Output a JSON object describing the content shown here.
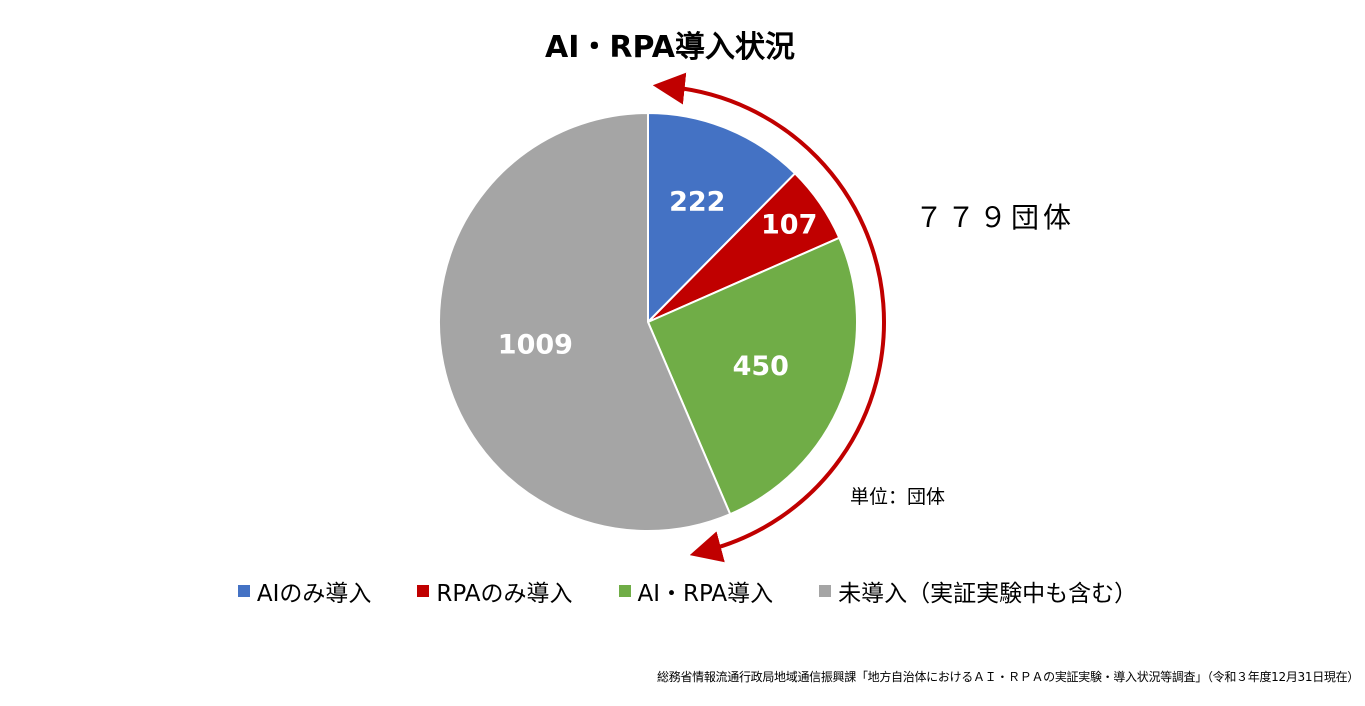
{
  "chart_data": {
    "type": "pie",
    "title": "AI・RPA導入状況",
    "categories": [
      "AIのみ導入",
      "RPAのみ導入",
      "AI・RPA導入",
      "未導入（実証実験中も含む）"
    ],
    "values": [
      222,
      107,
      450,
      1009
    ],
    "data_labels": [
      "222",
      "107",
      "450",
      "1009"
    ],
    "colors": [
      "#4472C4",
      "#C00000",
      "#70AD47",
      "#A5A5A5"
    ],
    "legend_position": "bottom",
    "start_angle": "12 o'clock, clockwise"
  },
  "annotations": {
    "arc_color": "#C00000",
    "group_total": "７７９団体",
    "unit": "単位：団体"
  },
  "source": "総務省情報流通行政局地域通信振興課「地方自治体におけるＡＩ・ＲＰＡの実証実験・導入状況等調査」（令和３年度12月31日現在）"
}
